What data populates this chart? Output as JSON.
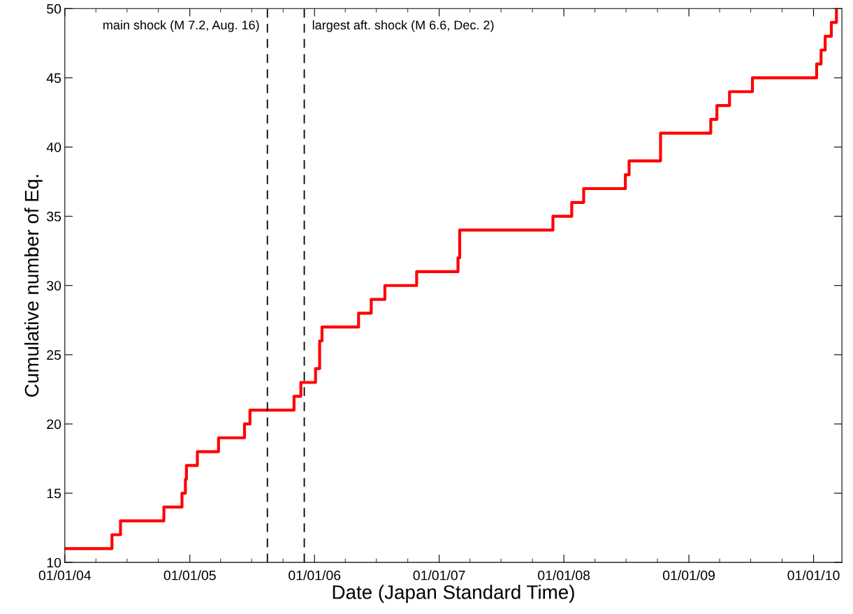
{
  "chart_data": {
    "type": "step",
    "xlabel": "Date (Japan Standard Time)",
    "ylabel": "Cumulative number of Eq.",
    "x": [
      "2004-01-01",
      "2004-05-18",
      "2004-06-12",
      "2004-10-17",
      "2004-12-09",
      "2004-12-19",
      "2004-12-22",
      "2005-01-23",
      "2005-03-26",
      "2005-06-10",
      "2005-06-26",
      "2005-11-02",
      "2005-11-22",
      "2006-01-04",
      "2006-01-16",
      "2006-01-23",
      "2006-05-10",
      "2006-06-16",
      "2006-07-26",
      "2006-10-27",
      "2007-02-25",
      "2007-03-02",
      "2007-11-30",
      "2008-01-24",
      "2008-02-28",
      "2008-06-29",
      "2008-07-10",
      "2008-10-10",
      "2009-03-06",
      "2009-03-24",
      "2009-04-30",
      "2009-07-06",
      "2010-01-10",
      "2010-01-23",
      "2010-02-04",
      "2010-02-22",
      "2010-03-09"
    ],
    "series": [
      {
        "color": "#ff0000",
        "values": [
          11,
          12,
          13,
          14,
          15,
          16,
          17,
          18,
          19,
          20,
          21,
          22,
          23,
          24,
          26,
          27,
          28,
          29,
          30,
          31,
          32,
          34,
          35,
          36,
          37,
          38,
          39,
          41,
          42,
          43,
          44,
          45,
          46,
          47,
          48,
          49,
          50
        ]
      }
    ],
    "xlim": [
      "2004-01-01",
      "2010-03-25"
    ],
    "xticks": [
      {
        "value": "2004-01-01",
        "label": "01/01/04"
      },
      {
        "value": "2005-01-01",
        "label": "01/01/05"
      },
      {
        "value": "2006-01-01",
        "label": "01/01/06"
      },
      {
        "value": "2007-01-01",
        "label": "01/01/07"
      },
      {
        "value": "2008-01-01",
        "label": "01/01/08"
      },
      {
        "value": "2009-01-01",
        "label": "01/01/09"
      },
      {
        "value": "2010-01-01",
        "label": "01/01/10"
      }
    ],
    "ylim": [
      10,
      50
    ],
    "yticks": [
      10,
      15,
      20,
      25,
      30,
      35,
      40,
      45,
      50
    ],
    "ref_lines": [
      {
        "axis": "x",
        "value": "2005-08-16",
        "label": "main shock (M 7.2, Aug. 16)",
        "color": "#000000",
        "line_style": "dashed"
      },
      {
        "axis": "x",
        "value": "2005-12-02",
        "label": "largest aft. shock (M 6.6, Dec. 2)",
        "color": "#000000",
        "line_style": "dashed"
      }
    ],
    "grid": false,
    "marker": "none",
    "line_style": "solid"
  }
}
